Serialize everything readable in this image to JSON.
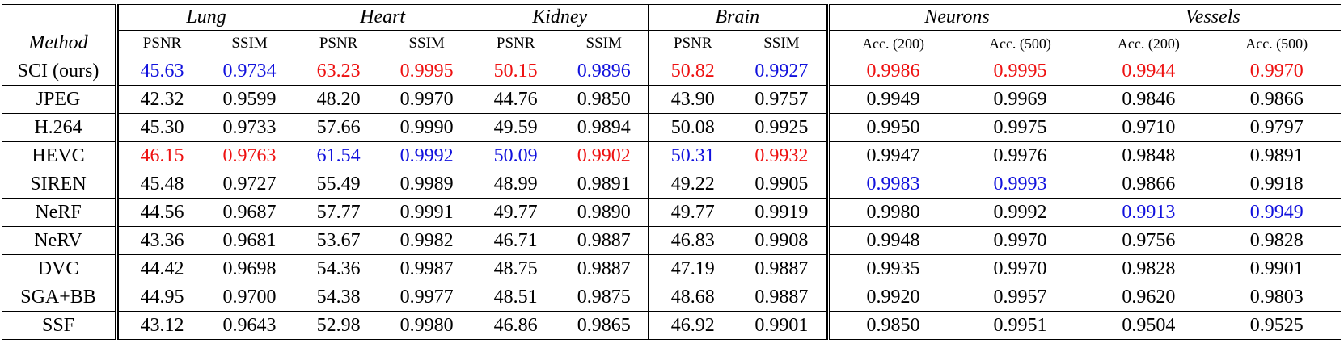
{
  "table": {
    "method_header": "Method",
    "groups": [
      {
        "name": "Lung",
        "subs": [
          "PSNR",
          "SSIM"
        ]
      },
      {
        "name": "Heart",
        "subs": [
          "PSNR",
          "SSIM"
        ]
      },
      {
        "name": "Kidney",
        "subs": [
          "PSNR",
          "SSIM"
        ]
      },
      {
        "name": "Brain",
        "subs": [
          "PSNR",
          "SSIM"
        ]
      },
      {
        "name": "Neurons",
        "subs": [
          "Acc. (200)",
          "Acc. (500)"
        ]
      },
      {
        "name": "Vessels",
        "subs": [
          "Acc. (200)",
          "Acc. (500)"
        ]
      }
    ],
    "highlight_colors": {
      "red": "#ee1111",
      "blue": "#1111dd"
    },
    "rows": [
      {
        "method": "SCI (ours)",
        "values": [
          "45.63",
          "0.9734",
          "63.23",
          "0.9995",
          "50.15",
          "0.9896",
          "50.82",
          "0.9927",
          "0.9986",
          "0.9995",
          "0.9944",
          "0.9970"
        ],
        "colors": [
          "blue",
          "blue",
          "red",
          "red",
          "red",
          "blue",
          "red",
          "blue",
          "red",
          "red",
          "red",
          "red"
        ]
      },
      {
        "method": "JPEG",
        "values": [
          "42.32",
          "0.9599",
          "48.20",
          "0.9970",
          "44.76",
          "0.9850",
          "43.90",
          "0.9757",
          "0.9949",
          "0.9969",
          "0.9846",
          "0.9866"
        ],
        "colors": [
          "",
          "",
          "",
          "",
          "",
          "",
          "",
          "",
          "",
          "",
          "",
          ""
        ]
      },
      {
        "method": "H.264",
        "values": [
          "45.30",
          "0.9733",
          "57.66",
          "0.9990",
          "49.59",
          "0.9894",
          "50.08",
          "0.9925",
          "0.9950",
          "0.9975",
          "0.9710",
          "0.9797"
        ],
        "colors": [
          "",
          "",
          "",
          "",
          "",
          "",
          "",
          "",
          "",
          "",
          "",
          ""
        ]
      },
      {
        "method": "HEVC",
        "values": [
          "46.15",
          "0.9763",
          "61.54",
          "0.9992",
          "50.09",
          "0.9902",
          "50.31",
          "0.9932",
          "0.9947",
          "0.9976",
          "0.9848",
          "0.9891"
        ],
        "colors": [
          "red",
          "red",
          "blue",
          "blue",
          "blue",
          "red",
          "blue",
          "red",
          "",
          "",
          "",
          ""
        ]
      },
      {
        "method": "SIREN",
        "values": [
          "45.48",
          "0.9727",
          "55.49",
          "0.9989",
          "48.99",
          "0.9891",
          "49.22",
          "0.9905",
          "0.9983",
          "0.9993",
          "0.9866",
          "0.9918"
        ],
        "colors": [
          "",
          "",
          "",
          "",
          "",
          "",
          "",
          "",
          "blue",
          "blue",
          "",
          ""
        ]
      },
      {
        "method": "NeRF",
        "values": [
          "44.56",
          "0.9687",
          "57.77",
          "0.9991",
          "49.77",
          "0.9890",
          "49.77",
          "0.9919",
          "0.9980",
          "0.9992",
          "0.9913",
          "0.9949"
        ],
        "colors": [
          "",
          "",
          "",
          "",
          "",
          "",
          "",
          "",
          "",
          "",
          "blue",
          "blue"
        ]
      },
      {
        "method": "NeRV",
        "values": [
          "43.36",
          "0.9681",
          "53.67",
          "0.9982",
          "46.71",
          "0.9887",
          "46.83",
          "0.9908",
          "0.9948",
          "0.9970",
          "0.9756",
          "0.9828"
        ],
        "colors": [
          "",
          "",
          "",
          "",
          "",
          "",
          "",
          "",
          "",
          "",
          "",
          ""
        ]
      },
      {
        "method": "DVC",
        "values": [
          "44.42",
          "0.9698",
          "54.36",
          "0.9987",
          "48.75",
          "0.9887",
          "47.19",
          "0.9887",
          "0.9935",
          "0.9970",
          "0.9828",
          "0.9901"
        ],
        "colors": [
          "",
          "",
          "",
          "",
          "",
          "",
          "",
          "",
          "",
          "",
          "",
          ""
        ]
      },
      {
        "method": "SGA+BB",
        "values": [
          "44.95",
          "0.9700",
          "54.38",
          "0.9977",
          "48.51",
          "0.9875",
          "48.68",
          "0.9887",
          "0.9920",
          "0.9957",
          "0.9620",
          "0.9803"
        ],
        "colors": [
          "",
          "",
          "",
          "",
          "",
          "",
          "",
          "",
          "",
          "",
          "",
          ""
        ]
      },
      {
        "method": "SSF",
        "values": [
          "43.12",
          "0.9643",
          "52.98",
          "0.9980",
          "46.86",
          "0.9865",
          "46.92",
          "0.9901",
          "0.9850",
          "0.9951",
          "0.9504",
          "0.9525"
        ],
        "colors": [
          "",
          "",
          "",
          "",
          "",
          "",
          "",
          "",
          "",
          "",
          "",
          ""
        ]
      }
    ]
  }
}
